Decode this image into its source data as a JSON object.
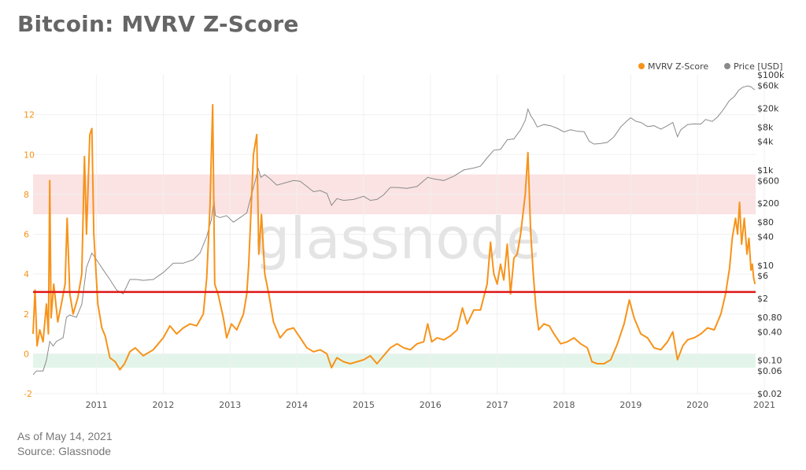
{
  "title": "Bitcoin: MVRV Z-Score",
  "footer": {
    "as_of": "As of May 14, 2021",
    "source": "Source: Glassnode"
  },
  "watermark": "glassnode",
  "colors": {
    "zscore": "#f7931a",
    "price": "#8a8a8a",
    "threshold": "#e01616",
    "red_band": "#fbe3e3",
    "green_band": "#e3f5ea",
    "left_axis": "#f7931a",
    "right_axis": "#333333",
    "grid": "#f0f0f0"
  },
  "chart_data": {
    "type": "line",
    "title": "Bitcoin: MVRV Z-Score",
    "legend": {
      "position": "top-right",
      "entries": [
        "MVRV Z-Score",
        "Price [USD]"
      ]
    },
    "grid": true,
    "x_axis": {
      "range": [
        2010.55,
        2021.37
      ],
      "ticks": [
        "2011",
        "2012",
        "2013",
        "2014",
        "2015",
        "2016",
        "2017",
        "2018",
        "2019",
        "2020",
        "2021"
      ]
    },
    "y_left": {
      "range": [
        -2,
        14
      ],
      "ticks": [
        -2,
        0,
        2,
        4,
        6,
        8,
        10,
        12
      ]
    },
    "y_right": {
      "scale": "log",
      "range": [
        0.02,
        100000
      ],
      "ticks": [
        "$0.02",
        "$0.06",
        "$0.10",
        "$0.40",
        "$0.80",
        "$2",
        "$6",
        "$10",
        "$40",
        "$80",
        "$200",
        "$600",
        "$1k",
        "$4k",
        "$8k",
        "$20k",
        "$60k",
        "$100k"
      ]
    },
    "bands": [
      {
        "axis": "left",
        "from": 7,
        "to": 9,
        "color": "red"
      },
      {
        "axis": "left",
        "from": -0.7,
        "to": 0,
        "color": "green"
      }
    ],
    "threshold_line": {
      "axis": "left",
      "value": 3.1
    },
    "series": [
      {
        "name": "MVRV Z-Score",
        "axis": "left",
        "points": [
          [
            2010.55,
            1.0
          ],
          [
            2010.58,
            3.2
          ],
          [
            2010.61,
            0.4
          ],
          [
            2010.65,
            1.2
          ],
          [
            2010.7,
            0.6
          ],
          [
            2010.75,
            2.5
          ],
          [
            2010.78,
            1.0
          ],
          [
            2010.8,
            8.7
          ],
          [
            2010.82,
            1.8
          ],
          [
            2010.86,
            3.5
          ],
          [
            2010.92,
            1.6
          ],
          [
            2010.98,
            2.6
          ],
          [
            2011.03,
            3.5
          ],
          [
            2011.06,
            6.8
          ],
          [
            2011.1,
            3.0
          ],
          [
            2011.15,
            2.0
          ],
          [
            2011.22,
            2.8
          ],
          [
            2011.28,
            4.0
          ],
          [
            2011.32,
            9.9
          ],
          [
            2011.35,
            6.0
          ],
          [
            2011.4,
            11.0
          ],
          [
            2011.43,
            11.3
          ],
          [
            2011.46,
            6.0
          ],
          [
            2011.52,
            2.5
          ],
          [
            2011.58,
            1.3
          ],
          [
            2011.63,
            0.9
          ],
          [
            2011.7,
            -0.2
          ],
          [
            2011.78,
            -0.4
          ],
          [
            2011.85,
            -0.8
          ],
          [
            2011.92,
            -0.5
          ],
          [
            2012.0,
            0.1
          ],
          [
            2012.08,
            0.3
          ],
          [
            2012.2,
            -0.1
          ],
          [
            2012.35,
            0.2
          ],
          [
            2012.5,
            0.8
          ],
          [
            2012.6,
            1.4
          ],
          [
            2012.7,
            1.0
          ],
          [
            2012.8,
            1.3
          ],
          [
            2012.9,
            1.5
          ],
          [
            2013.0,
            1.4
          ],
          [
            2013.1,
            2.0
          ],
          [
            2013.15,
            3.8
          ],
          [
            2013.2,
            7.4
          ],
          [
            2013.24,
            12.5
          ],
          [
            2013.27,
            3.5
          ],
          [
            2013.32,
            3.0
          ],
          [
            2013.4,
            1.8
          ],
          [
            2013.45,
            0.8
          ],
          [
            2013.52,
            1.5
          ],
          [
            2013.6,
            1.2
          ],
          [
            2013.7,
            2.0
          ],
          [
            2013.75,
            3.0
          ],
          [
            2013.78,
            4.5
          ],
          [
            2013.85,
            10.0
          ],
          [
            2013.9,
            11.0
          ],
          [
            2013.93,
            5.0
          ],
          [
            2013.97,
            7.0
          ],
          [
            2014.02,
            4.0
          ],
          [
            2014.08,
            3.0
          ],
          [
            2014.15,
            1.6
          ],
          [
            2014.25,
            0.8
          ],
          [
            2014.35,
            1.2
          ],
          [
            2014.45,
            1.3
          ],
          [
            2014.55,
            0.8
          ],
          [
            2014.65,
            0.3
          ],
          [
            2014.75,
            0.1
          ],
          [
            2014.85,
            0.2
          ],
          [
            2014.95,
            0.0
          ],
          [
            2015.02,
            -0.7
          ],
          [
            2015.1,
            -0.2
          ],
          [
            2015.2,
            -0.4
          ],
          [
            2015.3,
            -0.5
          ],
          [
            2015.4,
            -0.4
          ],
          [
            2015.5,
            -0.3
          ],
          [
            2015.6,
            -0.1
          ],
          [
            2015.7,
            -0.5
          ],
          [
            2015.8,
            -0.1
          ],
          [
            2015.9,
            0.3
          ],
          [
            2016.0,
            0.5
          ],
          [
            2016.1,
            0.3
          ],
          [
            2016.2,
            0.2
          ],
          [
            2016.3,
            0.5
          ],
          [
            2016.4,
            0.6
          ],
          [
            2016.46,
            1.5
          ],
          [
            2016.52,
            0.6
          ],
          [
            2016.6,
            0.8
          ],
          [
            2016.7,
            0.7
          ],
          [
            2016.8,
            0.9
          ],
          [
            2016.9,
            1.2
          ],
          [
            2016.98,
            2.3
          ],
          [
            2017.05,
            1.5
          ],
          [
            2017.15,
            2.2
          ],
          [
            2017.25,
            2.2
          ],
          [
            2017.35,
            3.5
          ],
          [
            2017.4,
            5.6
          ],
          [
            2017.45,
            4.0
          ],
          [
            2017.5,
            3.5
          ],
          [
            2017.55,
            4.5
          ],
          [
            2017.6,
            3.7
          ],
          [
            2017.65,
            5.5
          ],
          [
            2017.7,
            3.0
          ],
          [
            2017.75,
            4.8
          ],
          [
            2017.8,
            5.0
          ],
          [
            2017.85,
            6.0
          ],
          [
            2017.92,
            8.0
          ],
          [
            2017.96,
            10.1
          ],
          [
            2018.0,
            6.2
          ],
          [
            2018.04,
            4.0
          ],
          [
            2018.08,
            2.3
          ],
          [
            2018.12,
            1.2
          ],
          [
            2018.2,
            1.5
          ],
          [
            2018.28,
            1.4
          ],
          [
            2018.35,
            1.0
          ],
          [
            2018.45,
            0.5
          ],
          [
            2018.55,
            0.6
          ],
          [
            2018.65,
            0.8
          ],
          [
            2018.75,
            0.5
          ],
          [
            2018.85,
            0.3
          ],
          [
            2018.92,
            -0.4
          ],
          [
            2019.0,
            -0.5
          ],
          [
            2019.1,
            -0.5
          ],
          [
            2019.2,
            -0.3
          ],
          [
            2019.3,
            0.5
          ],
          [
            2019.4,
            1.5
          ],
          [
            2019.48,
            2.7
          ],
          [
            2019.55,
            1.8
          ],
          [
            2019.65,
            1.0
          ],
          [
            2019.75,
            0.8
          ],
          [
            2019.85,
            0.3
          ],
          [
            2019.95,
            0.2
          ],
          [
            2020.05,
            0.6
          ],
          [
            2020.13,
            1.1
          ],
          [
            2020.2,
            -0.3
          ],
          [
            2020.28,
            0.4
          ],
          [
            2020.35,
            0.7
          ],
          [
            2020.45,
            0.8
          ],
          [
            2020.55,
            1.0
          ],
          [
            2020.65,
            1.3
          ],
          [
            2020.75,
            1.2
          ],
          [
            2020.85,
            2.0
          ],
          [
            2020.92,
            3.0
          ],
          [
            2020.98,
            4.3
          ],
          [
            2021.02,
            5.8
          ],
          [
            2021.07,
            6.8
          ],
          [
            2021.1,
            6.0
          ],
          [
            2021.13,
            7.6
          ],
          [
            2021.16,
            5.5
          ],
          [
            2021.2,
            6.8
          ],
          [
            2021.24,
            5.0
          ],
          [
            2021.27,
            5.8
          ],
          [
            2021.3,
            4.2
          ],
          [
            2021.32,
            4.5
          ],
          [
            2021.34,
            3.8
          ],
          [
            2021.36,
            3.5
          ]
        ]
      },
      {
        "name": "Price [USD]",
        "axis": "right",
        "points": [
          [
            2010.55,
            0.05
          ],
          [
            2010.6,
            0.06
          ],
          [
            2010.65,
            0.06
          ],
          [
            2010.7,
            0.06
          ],
          [
            2010.75,
            0.1
          ],
          [
            2010.8,
            0.25
          ],
          [
            2010.85,
            0.2
          ],
          [
            2010.9,
            0.25
          ],
          [
            2011.0,
            0.3
          ],
          [
            2011.05,
            0.8
          ],
          [
            2011.1,
            0.9
          ],
          [
            2011.2,
            0.8
          ],
          [
            2011.28,
            1.5
          ],
          [
            2011.35,
            9
          ],
          [
            2011.43,
            18
          ],
          [
            2011.5,
            13
          ],
          [
            2011.6,
            8
          ],
          [
            2011.7,
            5
          ],
          [
            2011.8,
            3
          ],
          [
            2011.9,
            2.5
          ],
          [
            2012.0,
            5
          ],
          [
            2012.1,
            5
          ],
          [
            2012.2,
            4.8
          ],
          [
            2012.35,
            5
          ],
          [
            2012.5,
            7
          ],
          [
            2012.65,
            11
          ],
          [
            2012.8,
            11
          ],
          [
            2012.95,
            13
          ],
          [
            2013.05,
            18
          ],
          [
            2013.15,
            40
          ],
          [
            2013.22,
            90
          ],
          [
            2013.26,
            230
          ],
          [
            2013.28,
            110
          ],
          [
            2013.35,
            100
          ],
          [
            2013.45,
            110
          ],
          [
            2013.55,
            80
          ],
          [
            2013.65,
            100
          ],
          [
            2013.75,
            125
          ],
          [
            2013.82,
            300
          ],
          [
            2013.88,
            600
          ],
          [
            2013.92,
            1100
          ],
          [
            2013.96,
            700
          ],
          [
            2014.02,
            800
          ],
          [
            2014.1,
            650
          ],
          [
            2014.2,
            480
          ],
          [
            2014.35,
            550
          ],
          [
            2014.45,
            600
          ],
          [
            2014.55,
            580
          ],
          [
            2014.65,
            450
          ],
          [
            2014.75,
            350
          ],
          [
            2014.85,
            370
          ],
          [
            2014.95,
            320
          ],
          [
            2015.02,
            180
          ],
          [
            2015.1,
            250
          ],
          [
            2015.2,
            230
          ],
          [
            2015.35,
            240
          ],
          [
            2015.5,
            280
          ],
          [
            2015.6,
            230
          ],
          [
            2015.7,
            240
          ],
          [
            2015.8,
            300
          ],
          [
            2015.9,
            430
          ],
          [
            2016.0,
            430
          ],
          [
            2016.15,
            410
          ],
          [
            2016.3,
            450
          ],
          [
            2016.46,
            700
          ],
          [
            2016.55,
            650
          ],
          [
            2016.7,
            600
          ],
          [
            2016.85,
            740
          ],
          [
            2017.0,
            1000
          ],
          [
            2017.15,
            1100
          ],
          [
            2017.25,
            1200
          ],
          [
            2017.35,
            1800
          ],
          [
            2017.45,
            2600
          ],
          [
            2017.55,
            2700
          ],
          [
            2017.65,
            4300
          ],
          [
            2017.75,
            4500
          ],
          [
            2017.85,
            7000
          ],
          [
            2017.92,
            11000
          ],
          [
            2017.96,
            19000
          ],
          [
            2018.0,
            14000
          ],
          [
            2018.05,
            11000
          ],
          [
            2018.1,
            8000
          ],
          [
            2018.2,
            9000
          ],
          [
            2018.3,
            8500
          ],
          [
            2018.4,
            7500
          ],
          [
            2018.5,
            6300
          ],
          [
            2018.6,
            7000
          ],
          [
            2018.7,
            6500
          ],
          [
            2018.8,
            6400
          ],
          [
            2018.88,
            4000
          ],
          [
            2018.95,
            3500
          ],
          [
            2019.05,
            3600
          ],
          [
            2019.15,
            3800
          ],
          [
            2019.25,
            5000
          ],
          [
            2019.35,
            8000
          ],
          [
            2019.45,
            11000
          ],
          [
            2019.5,
            12500
          ],
          [
            2019.58,
            10500
          ],
          [
            2019.65,
            10000
          ],
          [
            2019.75,
            8200
          ],
          [
            2019.85,
            8500
          ],
          [
            2019.95,
            7200
          ],
          [
            2020.05,
            8500
          ],
          [
            2020.13,
            10000
          ],
          [
            2020.2,
            5000
          ],
          [
            2020.25,
            7000
          ],
          [
            2020.35,
            9000
          ],
          [
            2020.45,
            9300
          ],
          [
            2020.55,
            9200
          ],
          [
            2020.62,
            11500
          ],
          [
            2020.72,
            10500
          ],
          [
            2020.8,
            13000
          ],
          [
            2020.88,
            18000
          ],
          [
            2020.98,
            29000
          ],
          [
            2021.05,
            35000
          ],
          [
            2021.12,
            48000
          ],
          [
            2021.18,
            55000
          ],
          [
            2021.25,
            58000
          ],
          [
            2021.3,
            56000
          ],
          [
            2021.34,
            50000
          ],
          [
            2021.36,
            49000
          ]
        ]
      }
    ]
  }
}
